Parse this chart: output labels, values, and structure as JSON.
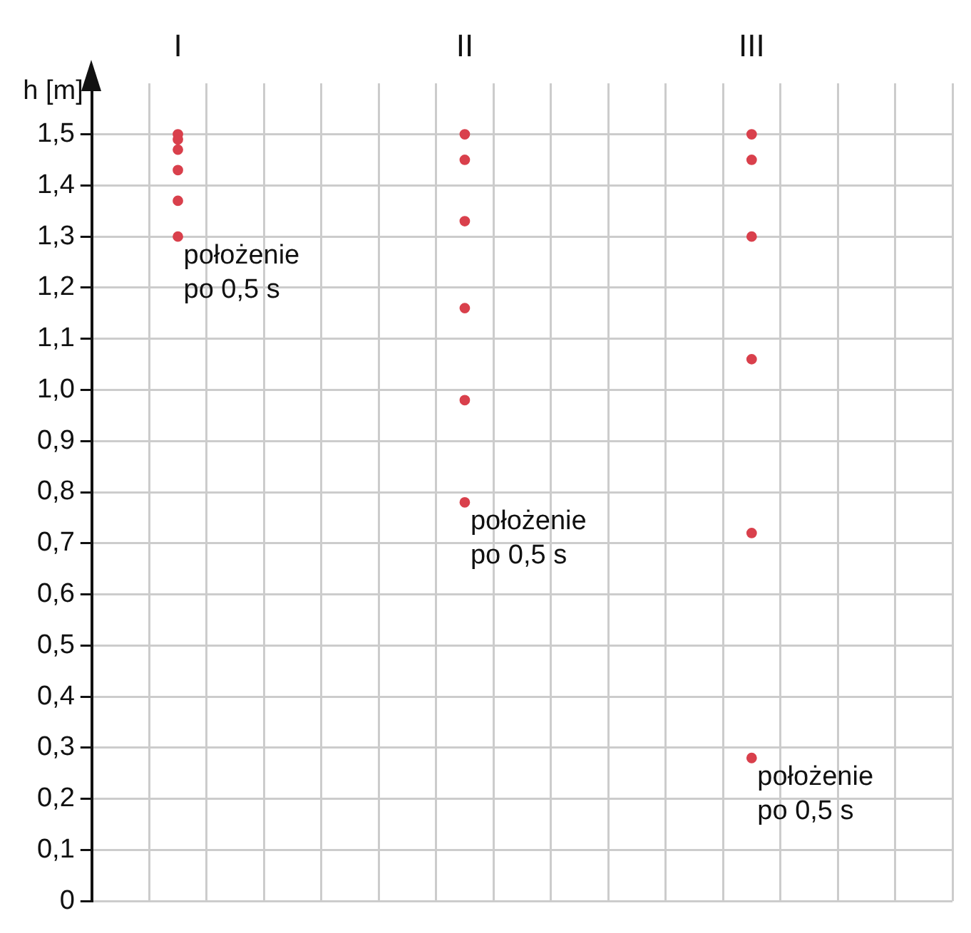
{
  "chart_data": {
    "type": "scatter",
    "categories": [
      null,
      "I",
      null,
      null,
      null,
      null,
      "II",
      null,
      null,
      null,
      null,
      "III",
      null,
      null,
      null
    ],
    "ylabel": "h [m]",
    "ylim": [
      0,
      1.6
    ],
    "yticks": [
      0,
      {
        "value": 0.1,
        "label": "0,1"
      },
      {
        "value": 0.2,
        "label": "0,2"
      },
      {
        "value": 0.3,
        "label": "0,3"
      },
      {
        "value": 0.4,
        "label": "0,4"
      },
      {
        "value": 0.5,
        "label": "0,5"
      },
      {
        "value": 0.6,
        "label": "0,6"
      },
      {
        "value": 0.7,
        "label": "0,7"
      },
      {
        "value": 0.8,
        "label": "0,8"
      },
      {
        "value": 0.9,
        "label": "0,9"
      },
      {
        "value": 1.0,
        "label": "1,0"
      },
      {
        "value": 1.1,
        "label": "1,1"
      },
      {
        "value": 1.2,
        "label": "1,2"
      },
      {
        "value": 1.3,
        "label": "1,3"
      },
      {
        "value": 1.4,
        "label": "1,4"
      },
      {
        "value": 1.5,
        "label": "1,5"
      }
    ],
    "series": [
      {
        "color": "#d9404c",
        "x": [
          "I",
          "I",
          "I",
          "I",
          "I",
          "I"
        ],
        "values": [
          1.5,
          1.49,
          1.47,
          1.43,
          1.37,
          1.3
        ]
      },
      {
        "color": "#d9404c",
        "x": [
          "II",
          "II",
          "II",
          "II",
          "II",
          "II"
        ],
        "values": [
          1.5,
          1.45,
          1.33,
          1.16,
          0.98,
          0.78
        ]
      },
      {
        "color": "#d9404c",
        "x": [
          "III",
          "III",
          "III",
          "III",
          "III",
          "III"
        ],
        "values": [
          1.5,
          1.45,
          1.3,
          1.06,
          0.72,
          0.28
        ]
      }
    ],
    "annotations": [
      {
        "text": "położenie po 0,5 s",
        "x": "I",
        "y": 1.3
      },
      {
        "text": "położenie po 0,5 s",
        "x": "II",
        "y": 0.78
      },
      {
        "text": "położenie po 0,5 s",
        "x": "III",
        "y": 0.28
      }
    ],
    "grid": true,
    "legend": false,
    "marker": "circle"
  }
}
